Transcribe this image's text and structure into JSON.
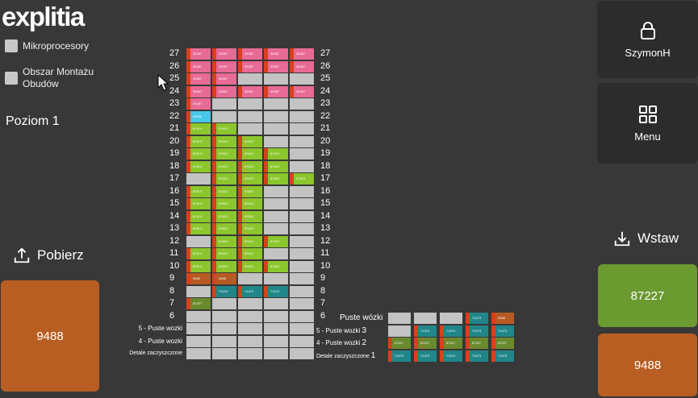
{
  "app": {
    "logo": "explitia"
  },
  "filters": [
    {
      "label": "Mikroprocesory"
    },
    {
      "label": "Obszar Montażu\nObudów"
    }
  ],
  "level_label": "Poziom 1",
  "upload_label": "Pobierz",
  "download_label": "Wstaw",
  "left_tile": "9488",
  "user_tile": "SzymonH",
  "menu_tile": "Menu",
  "right_tiles": [
    {
      "value": "87227",
      "color": "#6a9a30"
    },
    {
      "value": "9488",
      "color": "#b85e23"
    }
  ],
  "colors": {
    "pink": "#e86a96",
    "green": "#8bc62d",
    "teal": "#21868a",
    "orange": "#b85a24",
    "cyan": "#45c7ea",
    "accent_red": "#d8411c"
  },
  "rack": {
    "rows": [
      {
        "label": "27",
        "cells": [
          "35387",
          "35387",
          "35387",
          "35387",
          "35387"
        ],
        "color": "pink"
      },
      {
        "label": "26",
        "cells": [
          "35387",
          "35387",
          "35387",
          "35387",
          "35387"
        ],
        "color": "pink"
      },
      {
        "label": "25",
        "cells": [
          "35387",
          "35387",
          "",
          "",
          ""
        ],
        "color": "pink"
      },
      {
        "label": "24",
        "cells": [
          "35387",
          "35387",
          "35387",
          "35387",
          "35387"
        ],
        "color": "pink"
      },
      {
        "label": "23",
        "cells": [
          "35387",
          "",
          "",
          "",
          ""
        ],
        "color": "pink"
      },
      {
        "label": "22",
        "cells": [
          "98506",
          "",
          "",
          "",
          ""
        ],
        "color": "cyan"
      },
      {
        "label": "21",
        "cells": [
          "87613",
          "87613",
          "",
          "",
          ""
        ],
        "color": "green"
      },
      {
        "label": "20",
        "cells": [
          "87613",
          "87613",
          "87613",
          "",
          ""
        ],
        "color": "green"
      },
      {
        "label": "19",
        "cells": [
          "87613",
          "87613",
          "87613",
          "87613",
          ""
        ],
        "color": "green"
      },
      {
        "label": "18",
        "cells": [
          "87613",
          "87613",
          "87613",
          "87613",
          ""
        ],
        "color": "green"
      },
      {
        "label": "17",
        "cells": [
          "",
          "87613",
          "87613",
          "87613",
          "87613"
        ],
        "color": "green"
      },
      {
        "label": "16",
        "cells": [
          "87613",
          "87613",
          "87613",
          "",
          ""
        ],
        "color": "green"
      },
      {
        "label": "15",
        "cells": [
          "87613",
          "87613",
          "87613",
          "",
          ""
        ],
        "color": "green"
      },
      {
        "label": "14",
        "cells": [
          "87613",
          "87613",
          "87613",
          "",
          ""
        ],
        "color": "green"
      },
      {
        "label": "13",
        "cells": [
          "87613",
          "87613",
          "87613",
          "",
          ""
        ],
        "color": "green"
      },
      {
        "label": "12",
        "cells": [
          "",
          "87613",
          "87613",
          "87613",
          ""
        ],
        "color": "green"
      },
      {
        "label": "11",
        "cells": [
          "87613",
          "87613",
          "87613",
          "",
          ""
        ],
        "color": "green"
      },
      {
        "label": "10",
        "cells": [
          "87613",
          "87613",
          "87613",
          "87613",
          ""
        ],
        "color": "green"
      },
      {
        "label": "9",
        "cells": [
          "9488",
          "9488",
          "",
          "",
          ""
        ],
        "color": "orange"
      },
      {
        "label": "8",
        "cells": [
          "",
          "71473",
          "71473",
          "71473",
          ""
        ],
        "color": "teal"
      },
      {
        "label": "7",
        "cells": [
          "87227",
          "",
          "",
          "",
          ""
        ],
        "color": "olive"
      },
      {
        "label": "6",
        "cells": [
          "",
          "",
          "",
          "",
          ""
        ],
        "color": "blank"
      }
    ],
    "bottom_rows": [
      {
        "left": "5 - Puste wozki",
        "right": ""
      },
      {
        "left": "4 - Puste wozki",
        "right": ""
      },
      {
        "left": "Detale zaczyszczone",
        "right": ""
      }
    ]
  },
  "carts": {
    "header": "Puste wózki",
    "header_cells": [
      {
        "v": "",
        "c": "blank"
      },
      {
        "v": "",
        "c": "blank"
      },
      {
        "v": "",
        "c": "blank"
      },
      {
        "v": "71473",
        "c": "teal"
      },
      {
        "v": "9488",
        "c": "orange"
      }
    ],
    "rows": [
      {
        "label": "5 - Puste wozki",
        "num": "3",
        "cells": [
          {
            "v": "",
            "c": "blank"
          },
          {
            "v": "71473",
            "c": "teal"
          },
          {
            "v": "71473",
            "c": "teal"
          },
          {
            "v": "71473",
            "c": "teal"
          },
          {
            "v": "71473",
            "c": "teal"
          }
        ]
      },
      {
        "label": "4 - Puste wozki",
        "num": "2",
        "cells": [
          {
            "v": "87227",
            "c": "olive"
          },
          {
            "v": "87227",
            "c": "olive"
          },
          {
            "v": "87227",
            "c": "olive"
          },
          {
            "v": "87227",
            "c": "olive"
          },
          {
            "v": "87227",
            "c": "olive"
          }
        ]
      },
      {
        "label": "Detale zaczyszczone",
        "num": "1",
        "cells": [
          {
            "v": "71473",
            "c": "teal"
          },
          {
            "v": "71473",
            "c": "teal"
          },
          {
            "v": "71473",
            "c": "teal"
          },
          {
            "v": "71473",
            "c": "teal"
          },
          {
            "v": "71473",
            "c": "teal"
          }
        ]
      }
    ]
  }
}
